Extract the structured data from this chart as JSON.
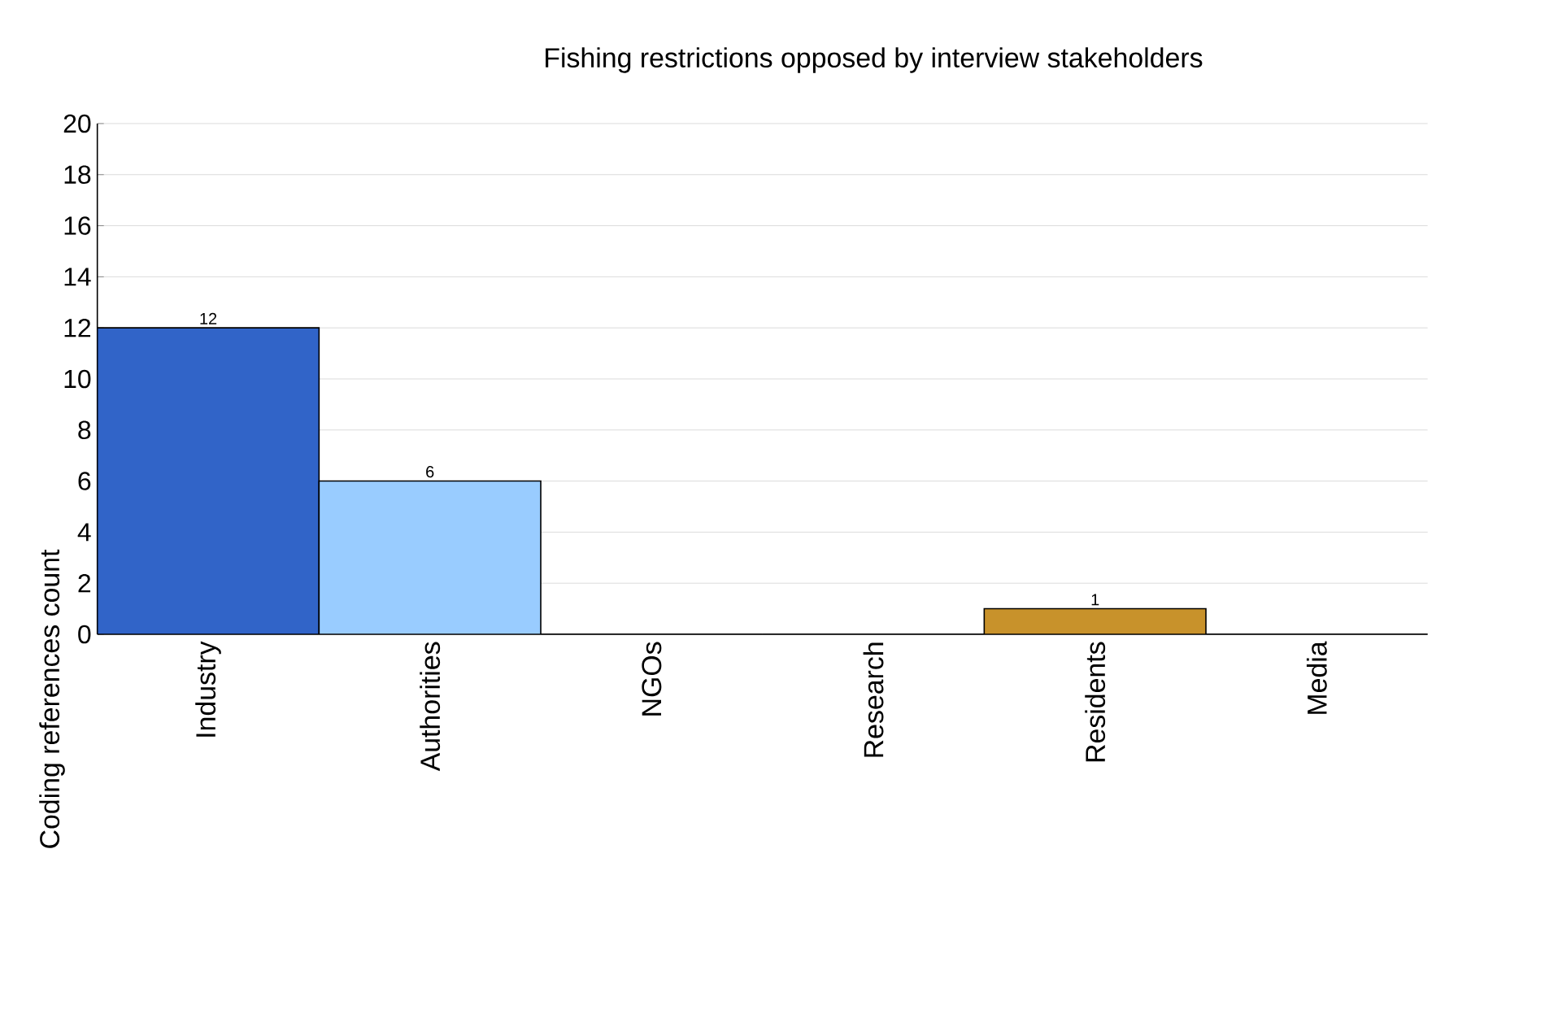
{
  "chart_data": {
    "type": "bar",
    "title": "Fishing restrictions opposed by interview stakeholders",
    "ylabel": "Coding references count",
    "categories": [
      "Industry",
      "Authorities",
      "NGOs",
      "Research",
      "Residents",
      "Media"
    ],
    "values": [
      12,
      6,
      0,
      0,
      1,
      0
    ],
    "colors": [
      "#3164c8",
      "#99ccff",
      "#3164c8",
      "#3164c8",
      "#c8922b",
      "#3164c8"
    ],
    "value_labels": [
      "12",
      "6",
      null,
      null,
      "1",
      null
    ],
    "ylim": [
      0,
      20
    ],
    "yticks": [
      0,
      2,
      4,
      6,
      8,
      10,
      12,
      14,
      16,
      18,
      20
    ],
    "grid": "y"
  }
}
